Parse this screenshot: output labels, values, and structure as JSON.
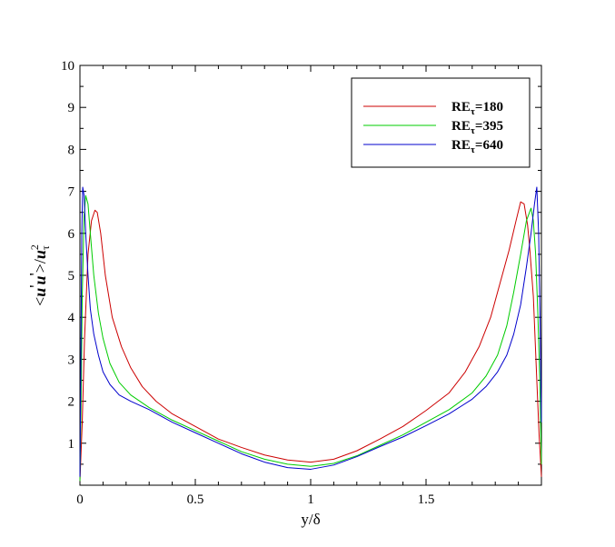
{
  "chart_data": {
    "type": "line",
    "xlabel": "y/δ",
    "ylabel": {
      "part1": "<",
      "part2": "u",
      "part3": "'",
      "part4": "u",
      "part5": "'",
      "part6": ">/",
      "part7": "u",
      "sup": "2",
      "sub": "τ"
    },
    "xlim": [
      0,
      2
    ],
    "ylim": [
      0,
      10
    ],
    "xticks": [
      {
        "value": 0,
        "label": "0"
      },
      {
        "value": 0.5,
        "label": "0.5"
      },
      {
        "value": 1,
        "label": "1"
      },
      {
        "value": 1.5,
        "label": "1.5"
      }
    ],
    "yticks": [
      {
        "value": 1,
        "label": "1"
      },
      {
        "value": 2,
        "label": "2"
      },
      {
        "value": 3,
        "label": "3"
      },
      {
        "value": 4,
        "label": "4"
      },
      {
        "value": 5,
        "label": "5"
      },
      {
        "value": 6,
        "label": "6"
      },
      {
        "value": 7,
        "label": "7"
      },
      {
        "value": 8,
        "label": "8"
      },
      {
        "value": 9,
        "label": "9"
      },
      {
        "value": 10,
        "label": "10"
      }
    ],
    "legend_position": "top-right",
    "series": [
      {
        "name_base": "RE",
        "name_sub": "τ",
        "name_rest": "=180",
        "color": "#cc0000",
        "x": [
          0.0,
          0.01,
          0.02,
          0.035,
          0.05,
          0.065,
          0.075,
          0.09,
          0.11,
          0.14,
          0.18,
          0.22,
          0.27,
          0.33,
          0.4,
          0.5,
          0.6,
          0.7,
          0.8,
          0.9,
          1.0,
          1.1,
          1.2,
          1.3,
          1.4,
          1.5,
          1.6,
          1.67,
          1.73,
          1.78,
          1.82,
          1.86,
          1.89,
          1.91,
          1.925,
          1.94,
          1.95,
          1.965,
          1.98,
          1.99,
          2.0
        ],
        "y": [
          0.1,
          1.5,
          3.5,
          5.5,
          6.3,
          6.55,
          6.5,
          6.0,
          5.0,
          4.0,
          3.3,
          2.8,
          2.35,
          2.0,
          1.7,
          1.4,
          1.1,
          0.9,
          0.72,
          0.6,
          0.55,
          0.62,
          0.82,
          1.1,
          1.4,
          1.78,
          2.2,
          2.7,
          3.3,
          4.0,
          4.8,
          5.6,
          6.3,
          6.75,
          6.7,
          6.2,
          5.6,
          4.5,
          2.5,
          1.2,
          0.2
        ]
      },
      {
        "name_base": "RE",
        "name_sub": "τ",
        "name_rest": "=395",
        "color": "#00cc00",
        "x": [
          0.0,
          0.005,
          0.01,
          0.018,
          0.025,
          0.035,
          0.045,
          0.06,
          0.08,
          0.1,
          0.13,
          0.17,
          0.22,
          0.3,
          0.4,
          0.5,
          0.6,
          0.7,
          0.8,
          0.9,
          1.0,
          1.1,
          1.2,
          1.3,
          1.4,
          1.5,
          1.6,
          1.7,
          1.76,
          1.81,
          1.85,
          1.88,
          1.91,
          1.935,
          1.955,
          1.965,
          1.975,
          1.985,
          1.993,
          2.0
        ],
        "y": [
          0.1,
          2.0,
          4.5,
          6.4,
          6.9,
          6.7,
          6.0,
          5.0,
          4.1,
          3.5,
          2.9,
          2.45,
          2.15,
          1.85,
          1.55,
          1.3,
          1.05,
          0.8,
          0.62,
          0.5,
          0.45,
          0.52,
          0.7,
          0.95,
          1.2,
          1.5,
          1.8,
          2.2,
          2.6,
          3.1,
          3.8,
          4.6,
          5.5,
          6.3,
          6.6,
          6.3,
          5.5,
          4.0,
          2.5,
          0.5
        ]
      },
      {
        "name_base": "RE",
        "name_sub": "τ",
        "name_rest": "=640",
        "color": "#0000cc",
        "x": [
          0.0,
          0.004,
          0.008,
          0.012,
          0.018,
          0.025,
          0.035,
          0.045,
          0.06,
          0.08,
          0.1,
          0.13,
          0.17,
          0.22,
          0.3,
          0.4,
          0.5,
          0.6,
          0.7,
          0.8,
          0.9,
          1.0,
          1.1,
          1.2,
          1.3,
          1.4,
          1.5,
          1.6,
          1.7,
          1.76,
          1.81,
          1.85,
          1.88,
          1.91,
          1.935,
          1.955,
          1.97,
          1.98,
          1.988,
          1.994,
          2.0
        ],
        "y": [
          0.2,
          3.0,
          6.0,
          7.1,
          6.9,
          6.0,
          5.0,
          4.2,
          3.6,
          3.1,
          2.7,
          2.4,
          2.15,
          2.0,
          1.8,
          1.5,
          1.25,
          1.0,
          0.75,
          0.55,
          0.42,
          0.38,
          0.48,
          0.68,
          0.92,
          1.15,
          1.42,
          1.7,
          2.05,
          2.35,
          2.7,
          3.1,
          3.6,
          4.3,
          5.2,
          6.0,
          6.7,
          7.1,
          6.0,
          4.0,
          1.5
        ]
      }
    ]
  }
}
